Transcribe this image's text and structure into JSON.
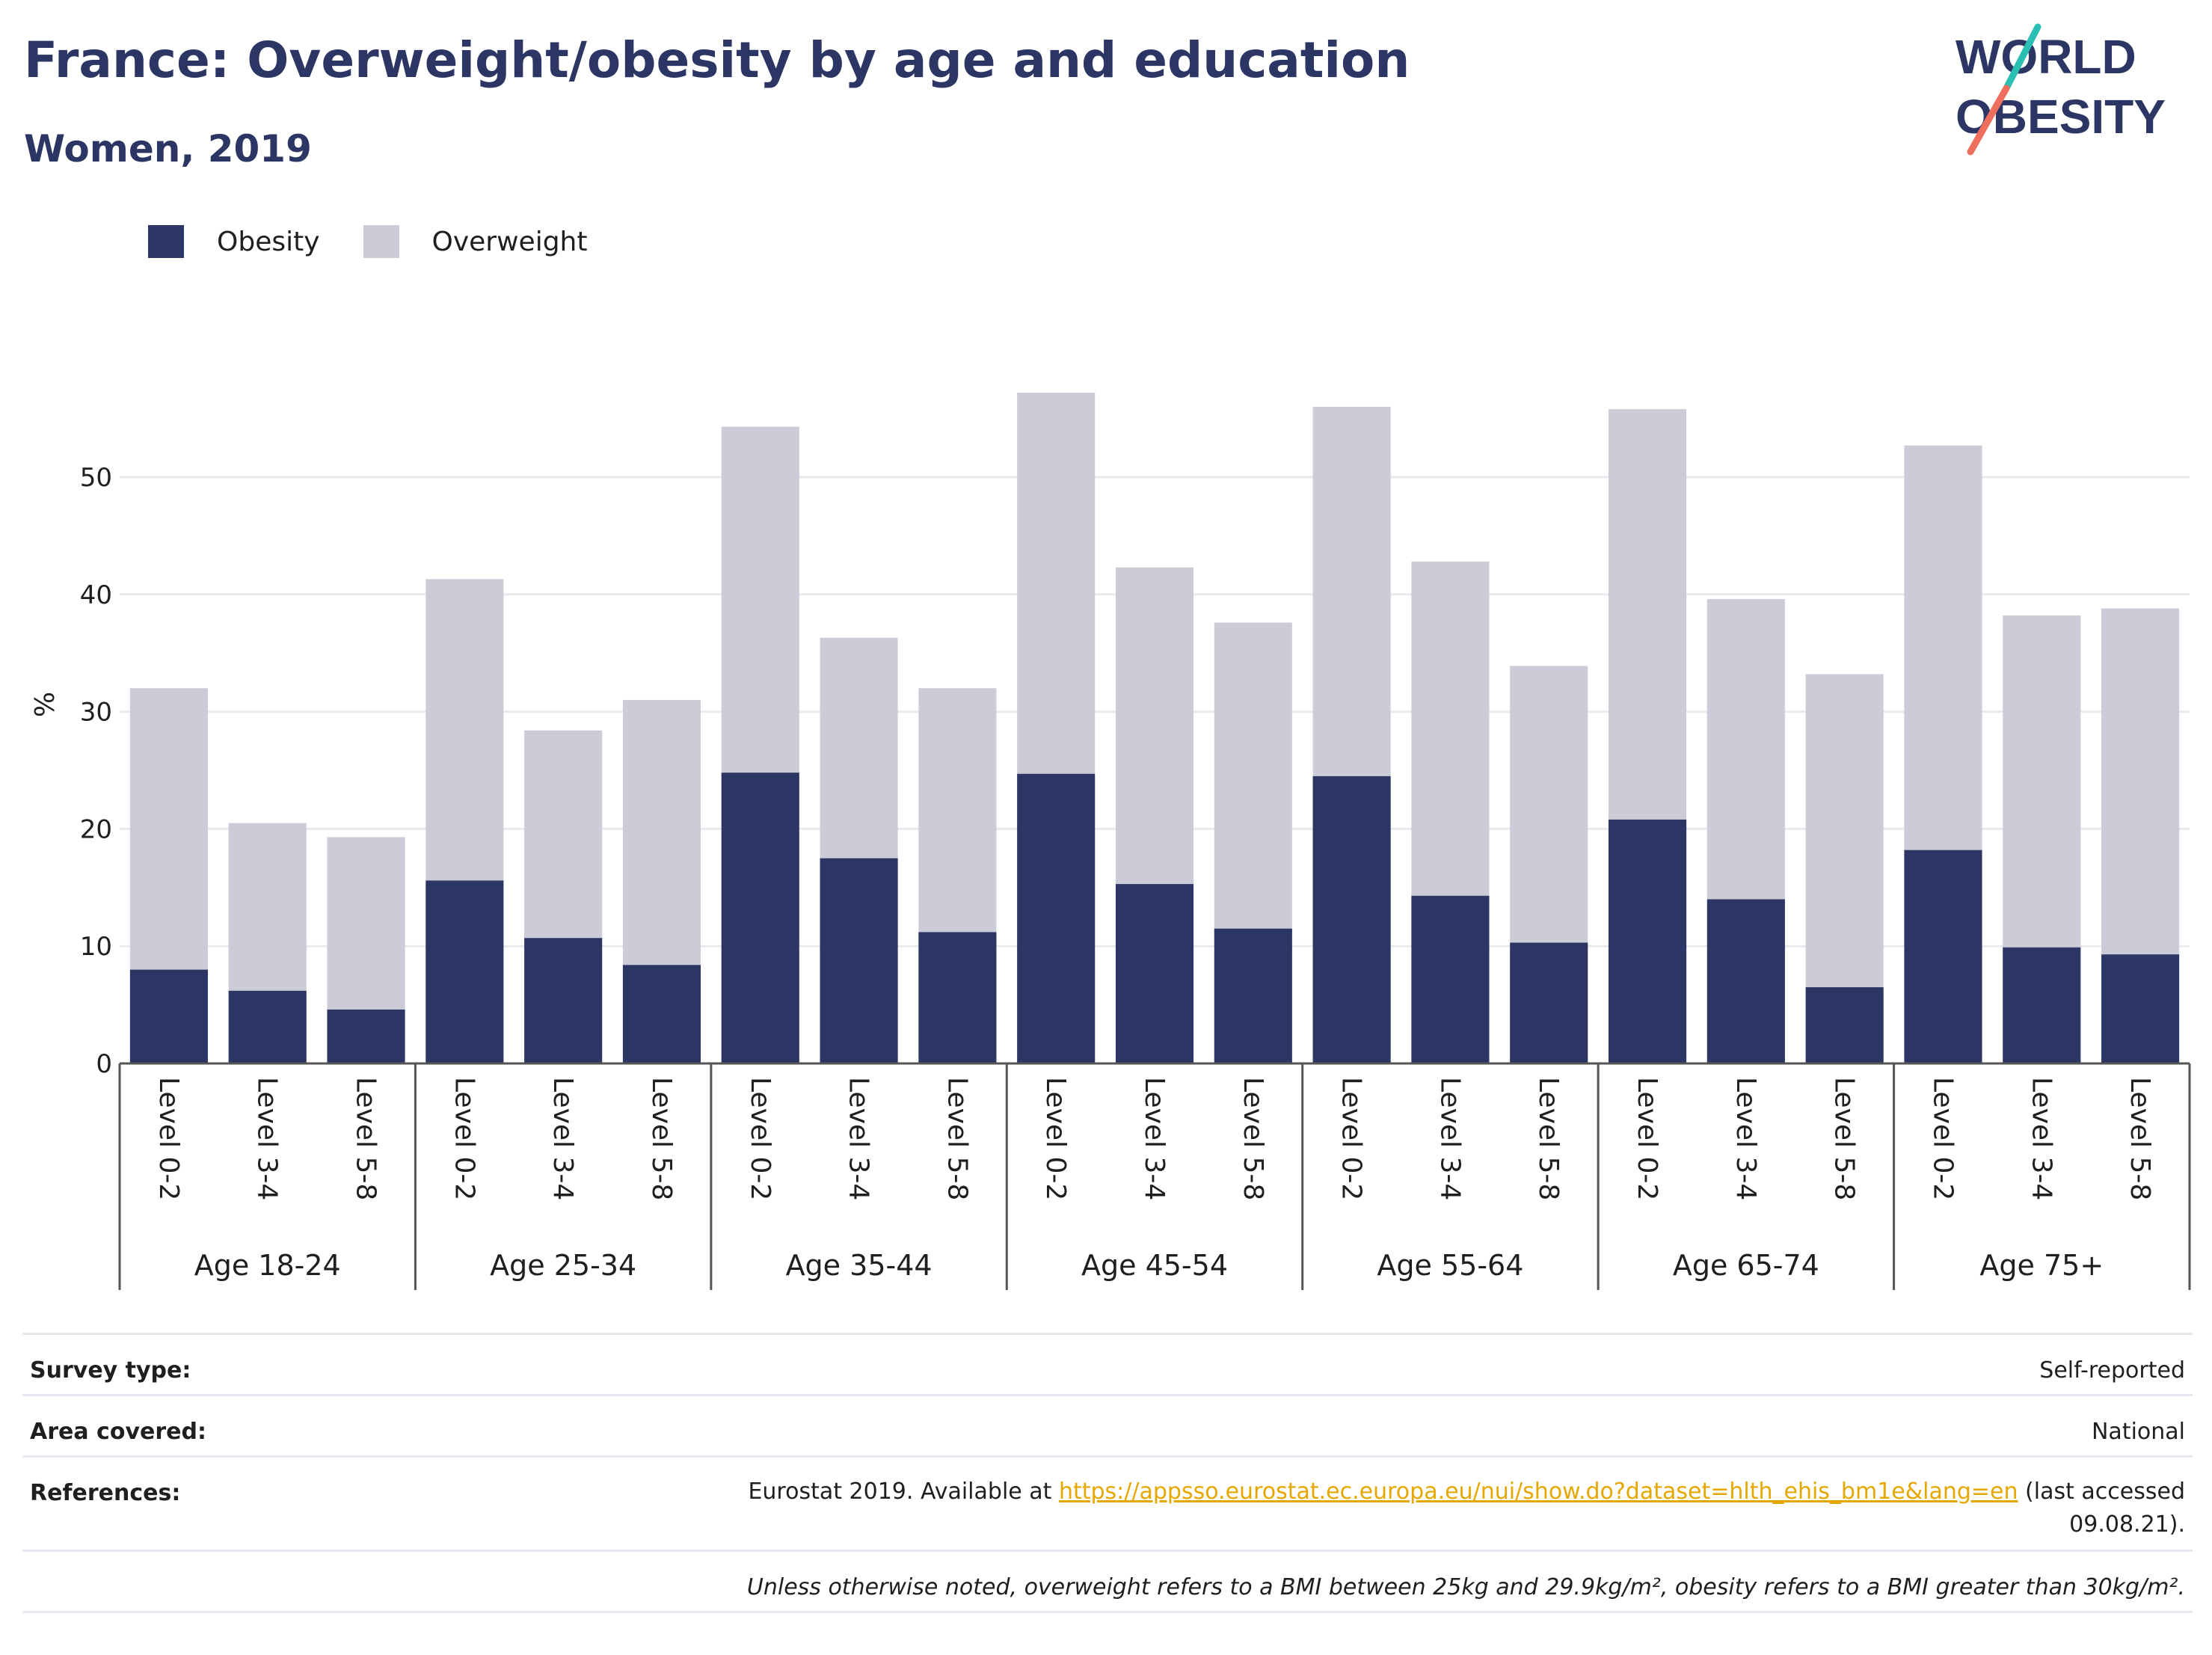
{
  "title": "France: Overweight/obesity by age and education",
  "subtitle": "Women, 2019",
  "logo": {
    "line1": "WORLD",
    "line2": "OBESITY"
  },
  "colors": {
    "obesity": "#2b3664",
    "overweight": "#cbccd8",
    "title": "#2b3664",
    "accent_teal": "#2bbfb3",
    "accent_coral": "#ef6f5e",
    "link": "#e6a700"
  },
  "chart_data": {
    "type": "bar",
    "stacked": true,
    "ylabel": "%",
    "ylim": [
      0,
      60
    ],
    "yticks": [
      0,
      10,
      20,
      30,
      40,
      50
    ],
    "grid": true,
    "legend_position": "top-left",
    "groups": [
      "Age 18-24",
      "Age 25-34",
      "Age 35-44",
      "Age 45-54",
      "Age 55-64",
      "Age 65-74",
      "Age 75+"
    ],
    "subcategories": [
      "Level 0-2",
      "Level 3-4",
      "Level 5-8"
    ],
    "series": [
      {
        "name": "Obesity",
        "values": [
          8.0,
          6.2,
          4.6,
          15.6,
          10.7,
          8.4,
          24.8,
          17.5,
          11.2,
          24.7,
          15.3,
          11.5,
          24.5,
          14.3,
          10.3,
          20.8,
          14.0,
          6.5,
          18.2,
          9.9,
          9.3
        ]
      },
      {
        "name": "Overweight",
        "values": [
          24.0,
          14.3,
          14.7,
          25.7,
          17.7,
          22.6,
          29.5,
          18.8,
          20.8,
          32.5,
          27.0,
          26.1,
          31.5,
          28.5,
          23.6,
          35.0,
          25.6,
          26.7,
          34.5,
          28.3,
          29.5
        ]
      }
    ]
  },
  "footer": {
    "survey_type_label": "Survey type:",
    "survey_type_value": "Self-reported",
    "area_label": "Area covered:",
    "area_value": "National",
    "references_label": "References:",
    "references_prefix": "Eurostat 2019. Available at ",
    "references_link": "https://appsso.eurostat.ec.europa.eu/nui/show.do?dataset=hlth_ehis_bm1e&lang=en",
    "references_suffix": " (last accessed 09.08.21).",
    "note": "Unless otherwise noted, overweight refers to a BMI between 25kg and 29.9kg/m², obesity refers to a BMI greater than 30kg/m²."
  }
}
